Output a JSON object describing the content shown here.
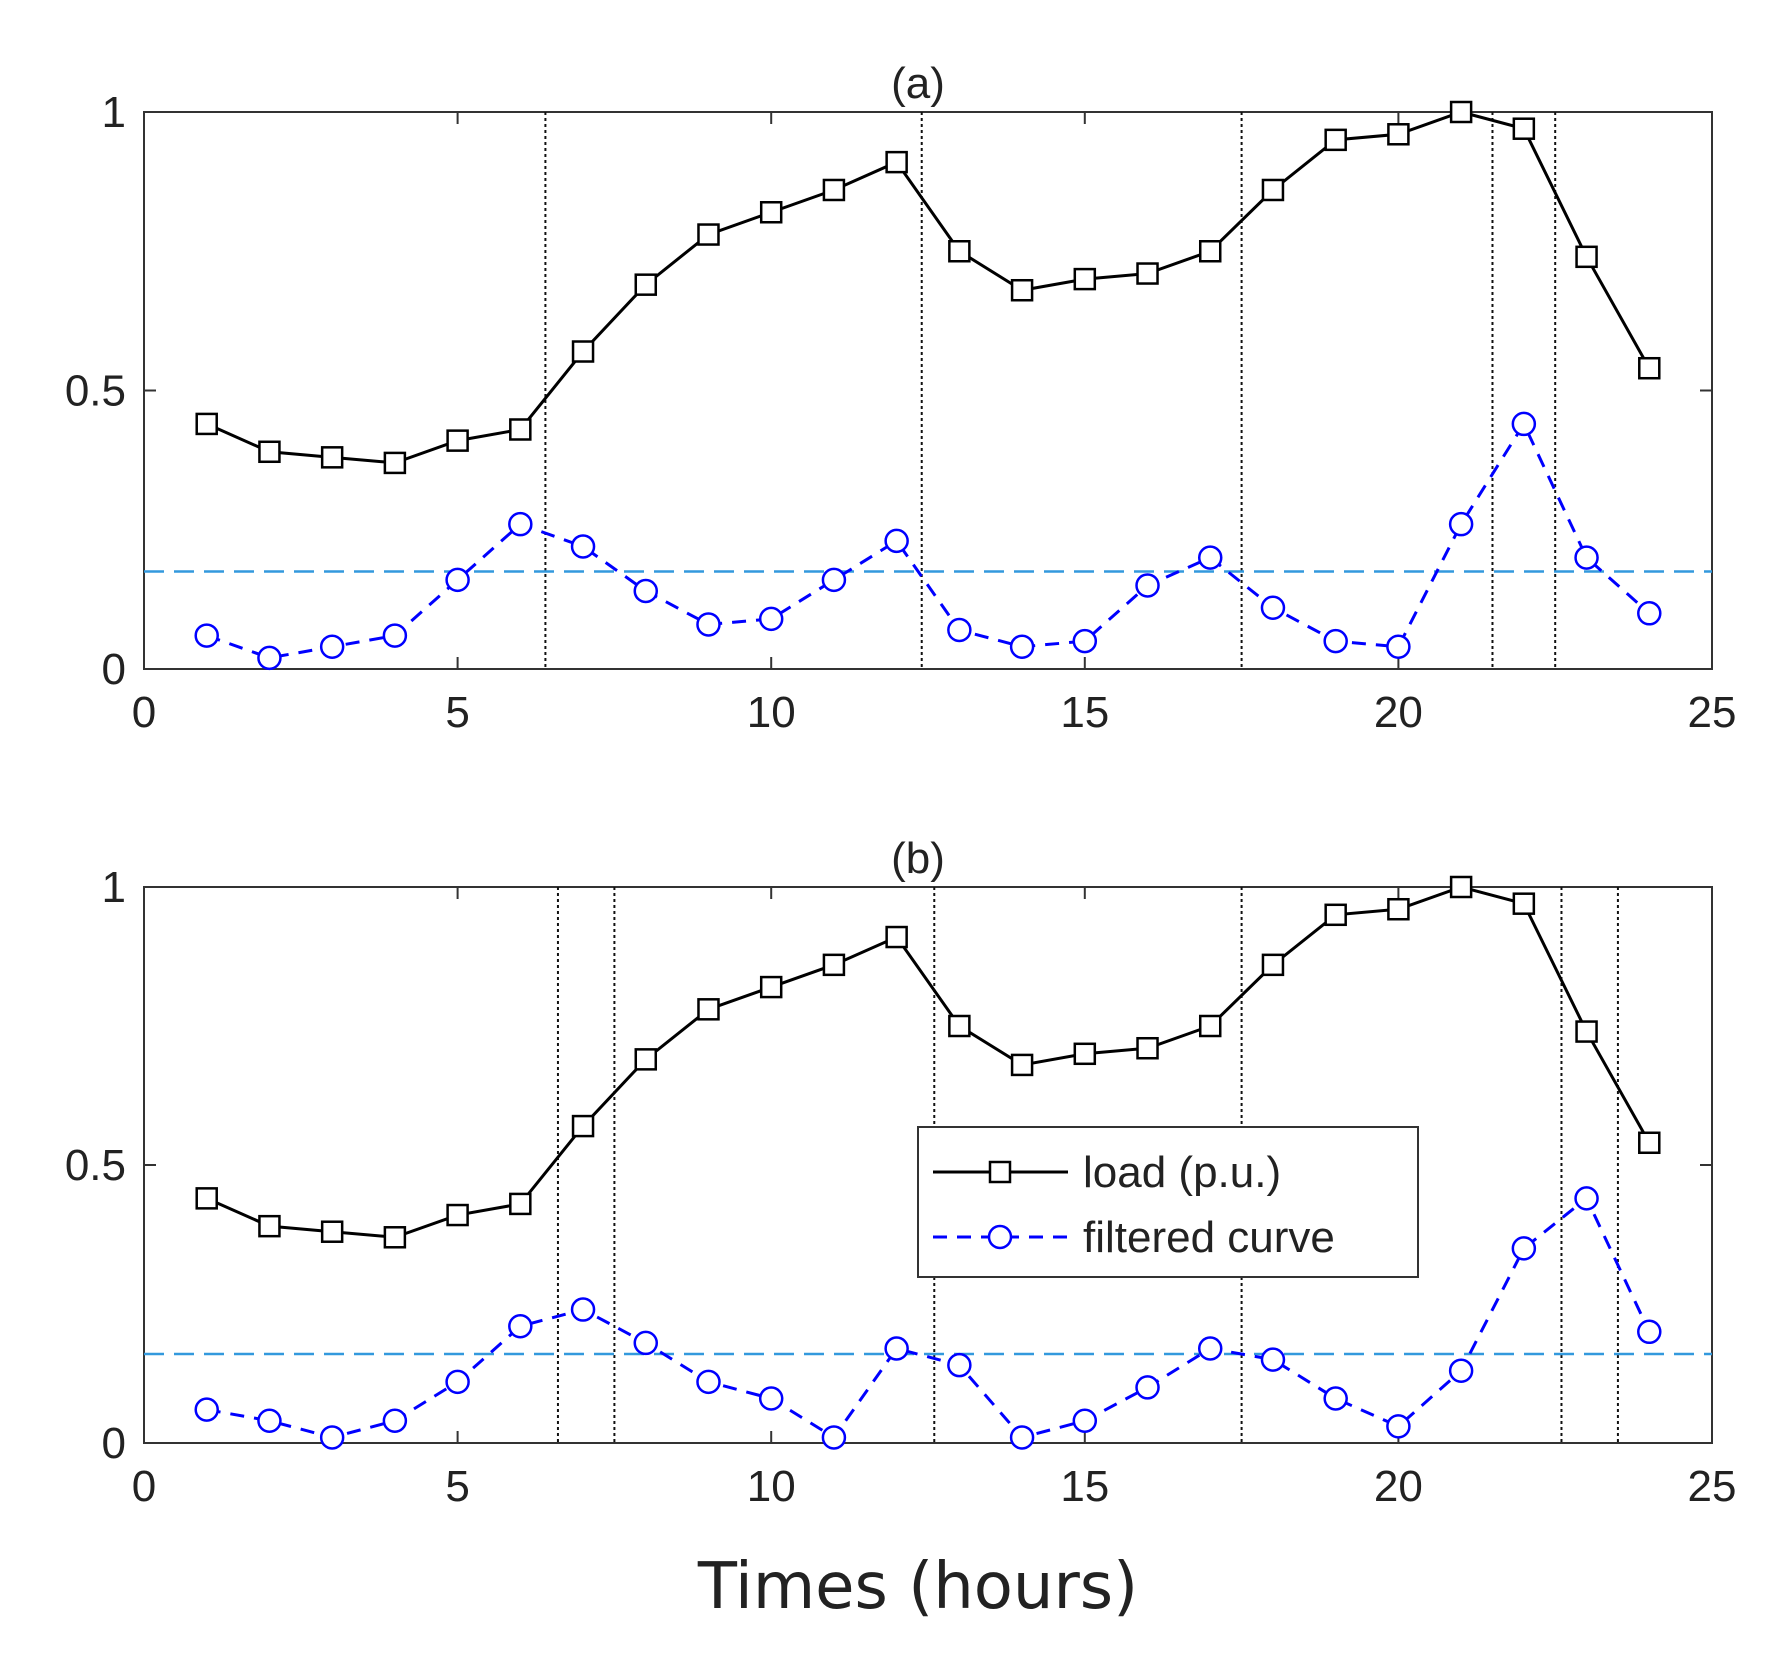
{
  "chart_data": [
    {
      "type": "line",
      "title": "(a)",
      "xlabel": "",
      "ylabel": "",
      "xlim": [
        0,
        25
      ],
      "ylim": [
        0,
        1
      ],
      "xticks": [
        "0",
        "5",
        "10",
        "15",
        "20",
        "25"
      ],
      "yticks": [
        "0",
        "0.5",
        "1"
      ],
      "x": [
        1,
        2,
        3,
        4,
        5,
        6,
        7,
        8,
        9,
        10,
        11,
        12,
        13,
        14,
        15,
        16,
        17,
        18,
        19,
        20,
        21,
        22,
        23,
        24
      ],
      "series": [
        {
          "name": "load (p.u.)",
          "style": "solid",
          "marker": "square",
          "color": "#000000",
          "values": [
            0.44,
            0.39,
            0.38,
            0.37,
            0.41,
            0.43,
            0.57,
            0.69,
            0.78,
            0.82,
            0.86,
            0.91,
            0.75,
            0.68,
            0.7,
            0.71,
            0.75,
            0.86,
            0.95,
            0.96,
            1.0,
            0.97,
            0.74,
            0.54
          ]
        },
        {
          "name": "filtered curve",
          "style": "dashed",
          "marker": "circle",
          "color": "#0000ff",
          "values": [
            0.06,
            0.02,
            0.04,
            0.06,
            0.16,
            0.26,
            0.22,
            0.14,
            0.08,
            0.09,
            0.16,
            0.23,
            0.07,
            0.04,
            0.05,
            0.15,
            0.2,
            0.11,
            0.05,
            0.04,
            0.26,
            0.44,
            0.2,
            0.1
          ]
        }
      ],
      "threshold": {
        "value": 0.175,
        "color": "#3399dd",
        "style": "dashed"
      },
      "vlines": [
        6.4,
        12.4,
        17.5,
        21.5,
        22.5
      ]
    },
    {
      "type": "line",
      "title": "(b)",
      "xlabel": "Times (hours)",
      "ylabel": "",
      "xlim": [
        0,
        25
      ],
      "ylim": [
        0,
        1
      ],
      "xticks": [
        "0",
        "5",
        "10",
        "15",
        "20",
        "25"
      ],
      "yticks": [
        "0",
        "0.5",
        "1"
      ],
      "x": [
        1,
        2,
        3,
        4,
        5,
        6,
        7,
        8,
        9,
        10,
        11,
        12,
        13,
        14,
        15,
        16,
        17,
        18,
        19,
        20,
        21,
        22,
        23,
        24
      ],
      "series": [
        {
          "name": "load (p.u.)",
          "style": "solid",
          "marker": "square",
          "color": "#000000",
          "values": [
            0.44,
            0.39,
            0.38,
            0.37,
            0.41,
            0.43,
            0.57,
            0.69,
            0.78,
            0.82,
            0.86,
            0.91,
            0.75,
            0.68,
            0.7,
            0.71,
            0.75,
            0.86,
            0.95,
            0.96,
            1.0,
            0.97,
            0.74,
            0.54
          ]
        },
        {
          "name": "filtered curve",
          "style": "dashed",
          "marker": "circle",
          "color": "#0000ff",
          "values": [
            0.06,
            0.04,
            0.01,
            0.04,
            0.11,
            0.21,
            0.24,
            0.18,
            0.11,
            0.08,
            0.01,
            0.17,
            0.14,
            0.01,
            0.04,
            0.1,
            0.17,
            0.15,
            0.08,
            0.03,
            0.13,
            0.35,
            0.44,
            0.2
          ]
        }
      ],
      "threshold": {
        "value": 0.16,
        "color": "#3399dd",
        "style": "dashed"
      },
      "vlines": [
        6.6,
        7.5,
        12.6,
        17.5,
        22.6,
        23.5
      ],
      "legend": {
        "position": "center-right",
        "entries": [
          "load (p.u.)",
          "filtered curve"
        ]
      }
    }
  ]
}
